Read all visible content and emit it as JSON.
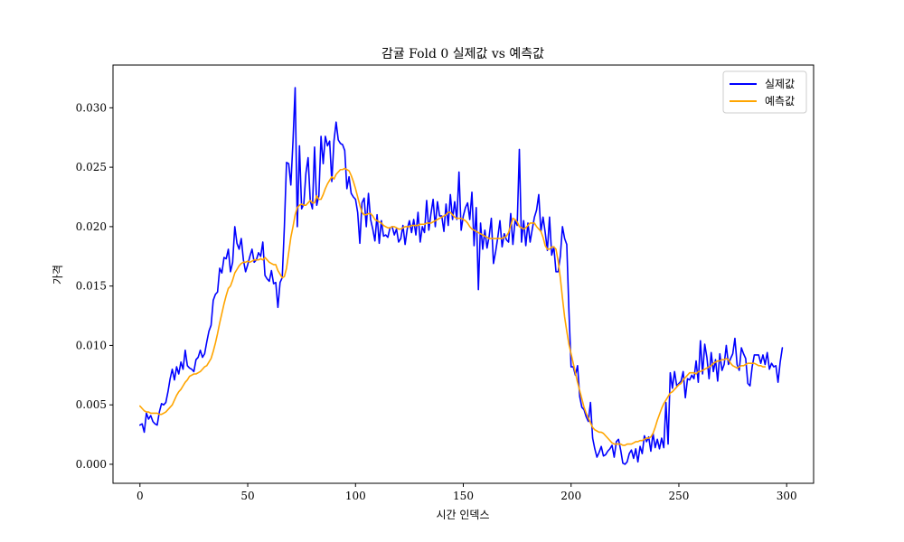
{
  "chart_data": {
    "type": "line",
    "title": "감귤 Fold 0 실제값 vs 예측값",
    "xlabel": "시간 인덱스",
    "ylabel": "가격",
    "xlim": [
      -12.5,
      312.5
    ],
    "ylim": [
      -0.0016,
      0.0336
    ],
    "xticks": [
      0,
      50,
      100,
      150,
      200,
      250,
      300
    ],
    "xtick_labels": [
      "0",
      "50",
      "100",
      "150",
      "200",
      "250",
      "300"
    ],
    "yticks": [
      0.0,
      0.005,
      0.01,
      0.015,
      0.02,
      0.025,
      0.03
    ],
    "ytick_labels": [
      "0.000",
      "0.005",
      "0.010",
      "0.015",
      "0.020",
      "0.025",
      "0.030"
    ],
    "grid": false,
    "legend_position": "top-right",
    "series": [
      {
        "name": "실제값",
        "color": "#0000ff",
        "x_start": 0,
        "x_step": 1,
        "values": [
          0.0033,
          0.0034,
          0.0027,
          0.0043,
          0.0038,
          0.0041,
          0.0036,
          0.0034,
          0.0033,
          0.0044,
          0.0051,
          0.005,
          0.0052,
          0.0061,
          0.0072,
          0.008,
          0.0071,
          0.0082,
          0.0076,
          0.0086,
          0.008,
          0.0096,
          0.0083,
          0.0081,
          0.008,
          0.0078,
          0.0088,
          0.009,
          0.0096,
          0.009,
          0.0093,
          0.0103,
          0.0112,
          0.0117,
          0.0138,
          0.0143,
          0.0145,
          0.0165,
          0.0161,
          0.0174,
          0.0173,
          0.0181,
          0.0162,
          0.017,
          0.02,
          0.0186,
          0.0181,
          0.019,
          0.0172,
          0.0162,
          0.0168,
          0.0175,
          0.0181,
          0.017,
          0.0172,
          0.0178,
          0.0175,
          0.0187,
          0.0159,
          0.0156,
          0.0154,
          0.0163,
          0.0152,
          0.0153,
          0.0132,
          0.0153,
          0.0157,
          0.02,
          0.0254,
          0.0253,
          0.0235,
          0.0272,
          0.0317,
          0.02,
          0.0268,
          0.0215,
          0.0219,
          0.0245,
          0.0258,
          0.0222,
          0.0215,
          0.0267,
          0.0218,
          0.0226,
          0.0276,
          0.0253,
          0.0276,
          0.0268,
          0.0272,
          0.0238,
          0.0272,
          0.0288,
          0.0273,
          0.027,
          0.0269,
          0.0264,
          0.0232,
          0.0242,
          0.0228,
          0.0225,
          0.0223,
          0.0212,
          0.0186,
          0.022,
          0.0224,
          0.02,
          0.0228,
          0.0206,
          0.0198,
          0.0188,
          0.021,
          0.0186,
          0.0205,
          0.0192,
          0.0193,
          0.0191,
          0.0199,
          0.02,
          0.0193,
          0.0198,
          0.0187,
          0.019,
          0.0201,
          0.0185,
          0.0198,
          0.0205,
          0.0195,
          0.0206,
          0.0193,
          0.0212,
          0.0187,
          0.02,
          0.0195,
          0.0222,
          0.0197,
          0.0211,
          0.0223,
          0.02,
          0.0221,
          0.0209,
          0.0209,
          0.0196,
          0.0219,
          0.0201,
          0.0227,
          0.0206,
          0.0221,
          0.0206,
          0.0246,
          0.0197,
          0.0209,
          0.0216,
          0.022,
          0.0206,
          0.0229,
          0.0184,
          0.0216,
          0.0147,
          0.0203,
          0.0181,
          0.0197,
          0.0182,
          0.0192,
          0.0207,
          0.0169,
          0.0179,
          0.0191,
          0.0205,
          0.0183,
          0.0194,
          0.0189,
          0.0187,
          0.0211,
          0.0185,
          0.0205,
          0.0201,
          0.0265,
          0.0187,
          0.0205,
          0.0184,
          0.0203,
          0.0187,
          0.0198,
          0.0208,
          0.0214,
          0.0227,
          0.0196,
          0.0208,
          0.0195,
          0.018,
          0.0208,
          0.0176,
          0.0183,
          0.0162,
          0.0162,
          0.0175,
          0.02,
          0.019,
          0.0185,
          0.0129,
          0.0082,
          0.0082,
          0.0075,
          0.0083,
          0.0057,
          0.0048,
          0.0046,
          0.004,
          0.0036,
          0.0052,
          0.0022,
          0.0013,
          0.0006,
          0.001,
          0.0015,
          0.0007,
          0.0008,
          0.0011,
          0.0013,
          0.0016,
          0.0006,
          0.0019,
          0.0021,
          0.0012,
          0.0001,
          0.0,
          0.0002,
          0.0009,
          0.0012,
          0.0005,
          0.0013,
          0.0002,
          0.0015,
          0.0009,
          0.0024,
          0.0019,
          0.0023,
          0.0011,
          0.0026,
          0.0014,
          0.0021,
          0.0013,
          0.0022,
          0.0014,
          0.0052,
          0.0017,
          0.0077,
          0.0064,
          0.0078,
          0.0066,
          0.0068,
          0.007,
          0.0078,
          0.0056,
          0.0072,
          0.0071,
          0.0075,
          0.0072,
          0.0087,
          0.0069,
          0.0104,
          0.0076,
          0.0101,
          0.009,
          0.0072,
          0.0094,
          0.0078,
          0.0088,
          0.007,
          0.0093,
          0.0079,
          0.0084,
          0.01,
          0.0084,
          0.0089,
          0.0093,
          0.0106,
          0.0084,
          0.0079,
          0.0098,
          0.0093,
          0.0089,
          0.0068,
          0.0066,
          0.0082,
          0.0092,
          0.0092,
          0.0092,
          0.0085,
          0.0092,
          0.0084,
          0.0094,
          0.008,
          0.0085,
          0.0082,
          0.0083,
          0.0069,
          0.0086,
          0.0098
        ]
      },
      {
        "name": "예측값",
        "color": "#ffa500",
        "x_start": 0,
        "x_step": 1,
        "values": [
          0.0049,
          0.0047,
          0.0045,
          0.0044,
          0.0044,
          0.0043,
          0.0043,
          0.0043,
          0.0043,
          0.0042,
          0.0042,
          0.0043,
          0.0044,
          0.0046,
          0.0048,
          0.005,
          0.0054,
          0.0058,
          0.0061,
          0.0063,
          0.0066,
          0.0069,
          0.0071,
          0.0074,
          0.0075,
          0.0076,
          0.0076,
          0.0077,
          0.0078,
          0.008,
          0.0082,
          0.0083,
          0.0086,
          0.0089,
          0.0095,
          0.0102,
          0.011,
          0.0119,
          0.0127,
          0.0135,
          0.0142,
          0.0148,
          0.015,
          0.0155,
          0.0161,
          0.0164,
          0.0167,
          0.0169,
          0.017,
          0.017,
          0.0171,
          0.017,
          0.0171,
          0.0172,
          0.0172,
          0.0172,
          0.0173,
          0.0172,
          0.0174,
          0.0172,
          0.017,
          0.0169,
          0.0168,
          0.0168,
          0.0163,
          0.016,
          0.0157,
          0.0158,
          0.0165,
          0.0178,
          0.0191,
          0.02,
          0.021,
          0.0216,
          0.0218,
          0.0219,
          0.0218,
          0.0218,
          0.022,
          0.0222,
          0.022,
          0.022,
          0.0226,
          0.0223,
          0.0223,
          0.0227,
          0.0232,
          0.0236,
          0.0239,
          0.0242,
          0.024,
          0.0244,
          0.0246,
          0.0248,
          0.0248,
          0.0249,
          0.0248,
          0.0247,
          0.0243,
          0.0238,
          0.0232,
          0.0225,
          0.0218,
          0.0212,
          0.021,
          0.021,
          0.0211,
          0.0211,
          0.0209,
          0.0206,
          0.0205,
          0.0204,
          0.0203,
          0.0201,
          0.02,
          0.0199,
          0.0199,
          0.02,
          0.02,
          0.0199,
          0.0198,
          0.0198,
          0.0199,
          0.02,
          0.02,
          0.02,
          0.0201,
          0.0201,
          0.0201,
          0.0201,
          0.0202,
          0.0202,
          0.0202,
          0.0203,
          0.0203,
          0.0203,
          0.0204,
          0.0205,
          0.0206,
          0.0207,
          0.0208,
          0.0209,
          0.021,
          0.0212,
          0.0212,
          0.021,
          0.0208,
          0.0207,
          0.0207,
          0.0207,
          0.0206,
          0.0205,
          0.0203,
          0.02,
          0.0198,
          0.0197,
          0.0196,
          0.0195,
          0.0194,
          0.0193,
          0.0192,
          0.0191,
          0.019,
          0.019,
          0.019,
          0.019,
          0.019,
          0.019,
          0.019,
          0.0191,
          0.0192,
          0.0195,
          0.0201,
          0.0207,
          0.0206,
          0.0204,
          0.02,
          0.0199,
          0.0198,
          0.0199,
          0.0201,
          0.0203,
          0.0203,
          0.0203,
          0.02,
          0.0198,
          0.0196,
          0.0191,
          0.0184,
          0.0181,
          0.0181,
          0.0183,
          0.0183,
          0.0181,
          0.0171,
          0.0157,
          0.014,
          0.0124,
          0.0112,
          0.0101,
          0.0093,
          0.0085,
          0.0077,
          0.0069,
          0.0062,
          0.0055,
          0.0048,
          0.0043,
          0.0039,
          0.0035,
          0.0031,
          0.0029,
          0.0028,
          0.0027,
          0.0027,
          0.0026,
          0.0024,
          0.0022,
          0.002,
          0.0018,
          0.0017,
          0.0017,
          0.0017,
          0.0017,
          0.0016,
          0.0016,
          0.0017,
          0.0017,
          0.0017,
          0.0018,
          0.0019,
          0.0019,
          0.002,
          0.002,
          0.0021,
          0.0022,
          0.0022,
          0.0023,
          0.0026,
          0.0031,
          0.0037,
          0.0042,
          0.0047,
          0.0051,
          0.0054,
          0.0057,
          0.006,
          0.0061,
          0.0063,
          0.0065,
          0.0067,
          0.0068,
          0.0071,
          0.0073,
          0.0075,
          0.0077,
          0.0077,
          0.0077,
          0.0076,
          0.0078,
          0.0078,
          0.0079,
          0.008,
          0.0081,
          0.0082,
          0.0083,
          0.0085,
          0.0086,
          0.0087,
          0.0087,
          0.0088,
          0.0088,
          0.0089,
          0.0088,
          0.0085,
          0.0083,
          0.0082,
          0.0081,
          0.0082,
          0.0083,
          0.0083,
          0.0084,
          0.0085,
          0.0085,
          0.0085,
          0.0085,
          0.0084,
          0.0083,
          0.0083,
          0.0082,
          0.0082
        ]
      }
    ]
  }
}
